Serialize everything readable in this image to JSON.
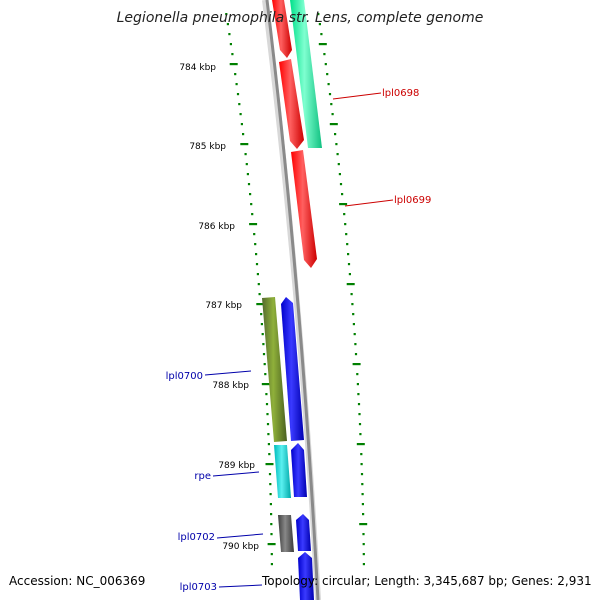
{
  "title": "Legionella pneumophila str. Lens, complete genome",
  "footer": {
    "accession": "Accession: NC_006369",
    "summary": "Topology: circular; Length: 3,345,687 bp; Genes: 2,931"
  },
  "ticks": [
    "784 kbp",
    "785 kbp",
    "786 kbp",
    "787 kbp",
    "788 kbp",
    "789 kbp",
    "790 kbp"
  ],
  "genes": [
    {
      "label": "lpl0698",
      "color": "#cc0000"
    },
    {
      "label": "lpl0699",
      "color": "#cc0000"
    },
    {
      "label": "lpl0700",
      "color": "#0000aa"
    },
    {
      "label": "rpe",
      "color": "#0000aa"
    },
    {
      "label": "lpl0702",
      "color": "#0000aa"
    },
    {
      "label": "lpl0703",
      "color": "#0000aa"
    }
  ],
  "colors": {
    "backbone": "#8a8a8a",
    "dots": "#008000",
    "red_feature": "#ff0000",
    "green_feature": "#2ef5a0",
    "blue_feature": "#0000ff",
    "olive_feature": "#6b8e23",
    "cyan_feature": "#00cccc",
    "gray_feature": "#555555"
  }
}
